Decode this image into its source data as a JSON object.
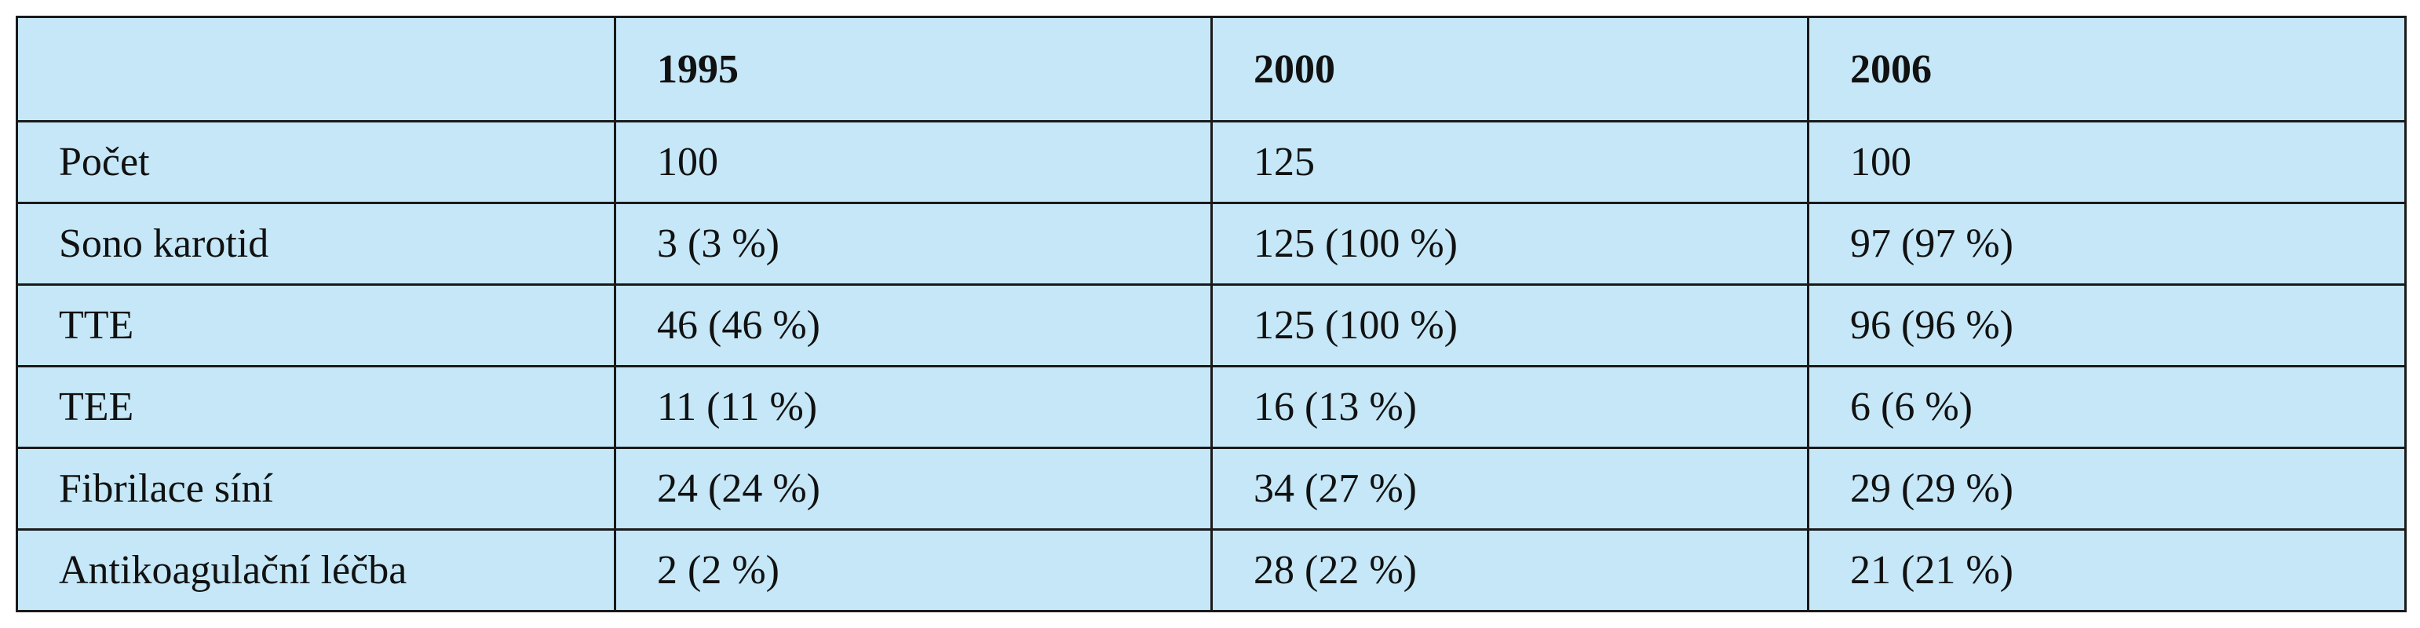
{
  "table": {
    "header": [
      "",
      "1995",
      "2000",
      "2006"
    ],
    "rows": [
      {
        "label": "Počet",
        "values": [
          "100",
          "125",
          "100"
        ]
      },
      {
        "label": "Sono karotid",
        "values": [
          "3 (3 %)",
          "125 (100 %)",
          "97 (97 %)"
        ]
      },
      {
        "label": "TTE",
        "values": [
          "46 (46 %)",
          "125 (100 %)",
          "96 (96 %)"
        ]
      },
      {
        "label": "TEE",
        "values": [
          "11 (11 %)",
          "16 (13 %)",
          "6 (6 %)"
        ]
      },
      {
        "label": "Fibrilace síní",
        "values": [
          "24 (24 %)",
          "34 (27 %)",
          "29 (29 %)"
        ]
      },
      {
        "label": "Antikoagulační léčba",
        "values": [
          "2 (2 %)",
          "28 (22 %)",
          "21 (21 %)"
        ]
      }
    ]
  },
  "colors": {
    "cell_background": "#c5e7f7",
    "border": "#1a1a1a",
    "text": "#111111"
  }
}
